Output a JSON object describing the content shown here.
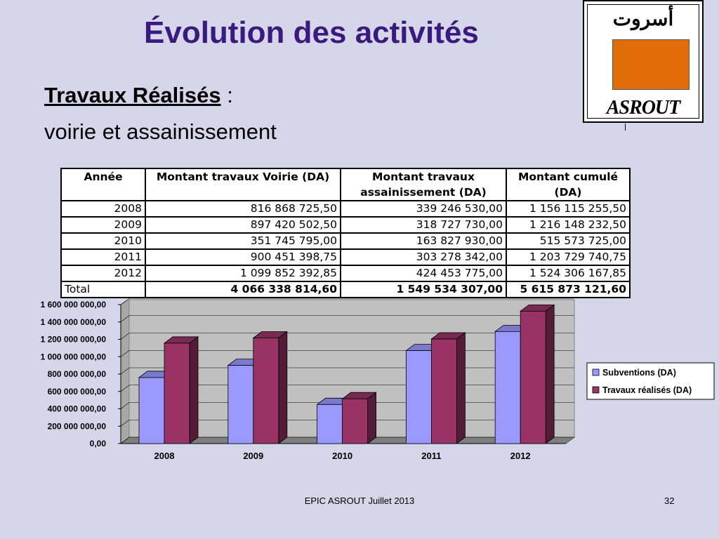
{
  "slide": {
    "title": "Évolution des activités",
    "subtitle_underlined": "Travaux Réalisés",
    "subtitle_colon": " :",
    "subtitle_line2": "voirie et assainissement",
    "footer": "EPIC ASROUT Juillet 2013",
    "page_number": "32"
  },
  "logo": {
    "arabic": "أسروت",
    "latin": "ASROUT",
    "box_color": "#e36c0a"
  },
  "table": {
    "headers": [
      "Année",
      "Montant travaux Voirie (DA)",
      "Montant travaux assainissement (DA)",
      "Montant cumulé (DA)"
    ],
    "rows": [
      [
        "2008",
        "816 868 725,50",
        "339 246 530,00",
        "1 156 115 255,50"
      ],
      [
        "2009",
        "897 420 502,50",
        "318 727 730,00",
        "1 216 148 232,50"
      ],
      [
        "2010",
        "351 745 795,00",
        "163 827 930,00",
        "515 573 725,00"
      ],
      [
        "2011",
        "900 451 398,75",
        "303 278 342,00",
        "1 203 729 740,75"
      ],
      [
        "2012",
        "1 099 852 392,85",
        "424 453 775,00",
        "1 524 306 167,85"
      ]
    ],
    "total": [
      "Total",
      "4 066 338 814,60",
      "1 549 534 307,00",
      "5 615 873 121,60"
    ]
  },
  "chart_data": {
    "type": "bar",
    "categories": [
      "2008",
      "2009",
      "2010",
      "2011",
      "2012"
    ],
    "series": [
      {
        "name": "Subventions (DA)",
        "color": "#9999ff",
        "values": [
          760000000,
          900000000,
          450000000,
          1070000000,
          1290000000
        ]
      },
      {
        "name": "Travaux réalisés (DA)",
        "color": "#993366",
        "values": [
          1156115255.5,
          1216148232.5,
          515573725,
          1203729740.75,
          1524306167.85
        ]
      }
    ],
    "ylim": [
      0,
      1600000000
    ],
    "yticks": [
      "0,00",
      "200 000 000,00",
      "400 000 000,00",
      "600 000 000,00",
      "800 000 000,00",
      "1 000 000 000,00",
      "1 200 000 000,00",
      "1 400 000 000,00",
      "1 600 000 000,00"
    ],
    "legend_position": "right",
    "grid": true,
    "style": "3d-clustered"
  }
}
